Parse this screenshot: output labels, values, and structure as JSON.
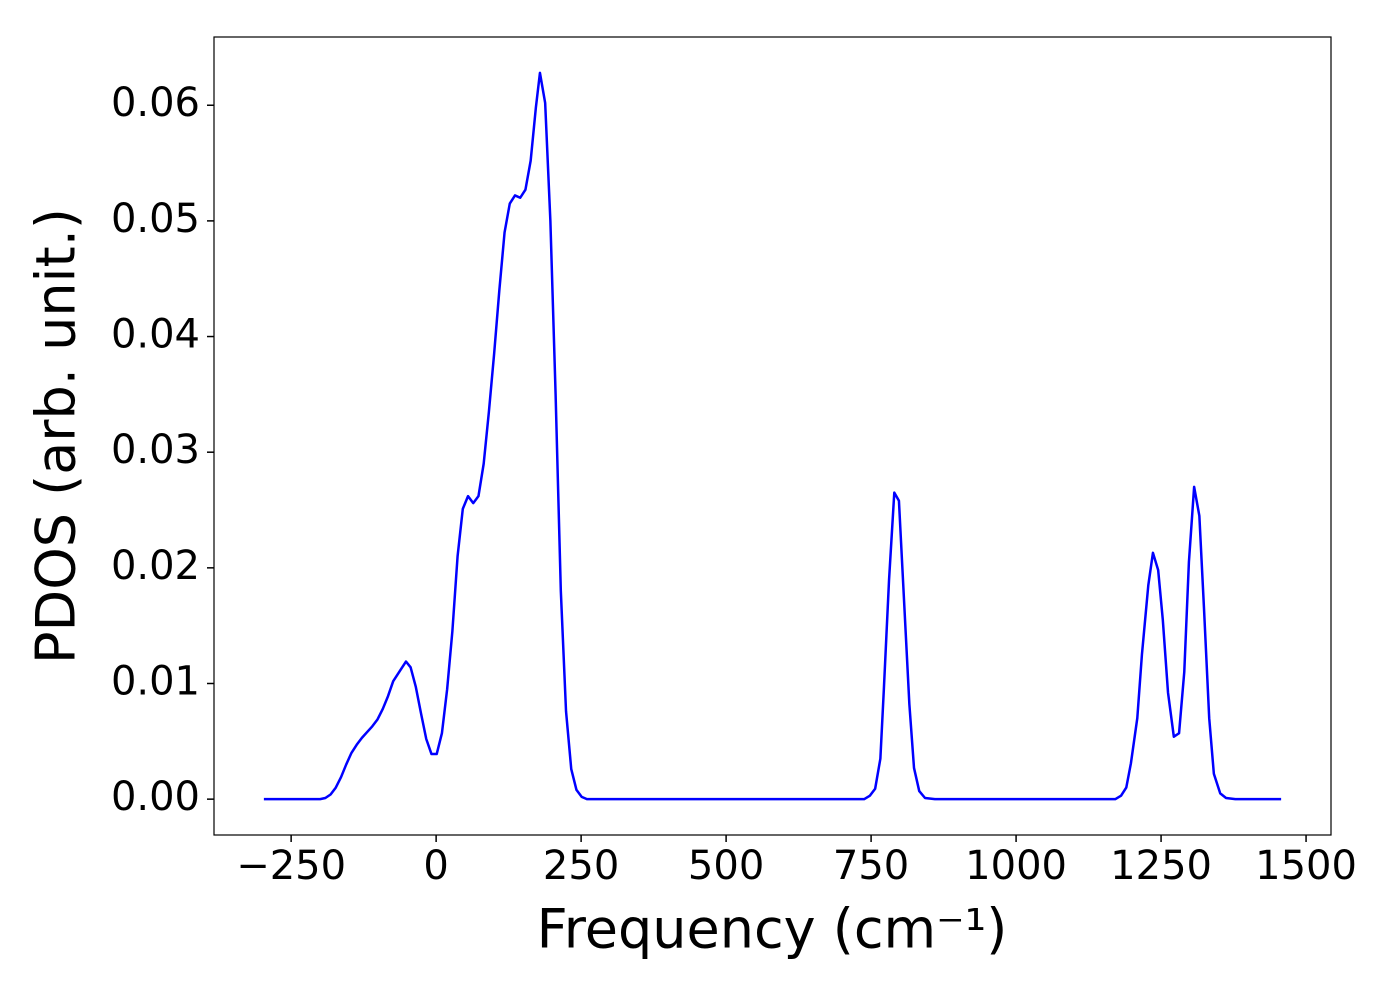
{
  "chart_data": {
    "type": "line",
    "xlabel": "Frequency (cm⁻¹)",
    "ylabel": "PDOS (arb. unit.)",
    "xlim": [
      -383,
      1543
    ],
    "ylim": [
      -0.0031,
      0.0659
    ],
    "xticks": [
      {
        "value": -250,
        "label": "−250"
      },
      0,
      250,
      500,
      750,
      1000,
      1250,
      1500
    ],
    "yticks": [
      {
        "value": 0,
        "label": "0.00"
      },
      0.01,
      0.02,
      0.03,
      0.04,
      0.05,
      0.06
    ],
    "grid": false,
    "series": [
      {
        "color": "#0000ff",
        "x": [
          -297,
          -200,
          -191,
          -182,
          -173,
          -164,
          -155,
          -146,
          -137,
          -128,
          -119,
          -110,
          -101,
          -92,
          -83,
          -74,
          -61,
          -52,
          -44,
          -35,
          -26,
          -17,
          -8,
          1,
          10,
          19,
          28,
          37,
          46,
          55,
          64,
          73,
          82,
          91,
          100,
          109,
          118,
          127,
          136,
          145,
          154,
          163,
          172,
          179,
          188,
          197,
          206,
          215,
          224,
          233,
          242,
          251,
          260,
          738,
          748,
          757,
          766,
          772,
          781,
          790,
          798,
          807,
          816,
          824,
          833,
          843,
          860,
          1171,
          1181,
          1190,
          1198,
          1209,
          1217,
          1228,
          1236,
          1245,
          1253,
          1262,
          1272,
          1281,
          1290,
          1298,
          1307,
          1316,
          1324,
          1333,
          1341,
          1352,
          1362,
          1378,
          1457
        ],
        "values": [
          0,
          0,
          0.0001,
          0.0004,
          0.001,
          0.0019,
          0.003,
          0.004,
          0.0047,
          0.0053,
          0.0058,
          0.0063,
          0.0069,
          0.0078,
          0.0089,
          0.0102,
          0.0112,
          0.0119,
          0.0114,
          0.0097,
          0.0074,
          0.0052,
          0.0039,
          0.0039,
          0.0057,
          0.0095,
          0.0145,
          0.021,
          0.0251,
          0.0262,
          0.0256,
          0.0262,
          0.029,
          0.0335,
          0.0385,
          0.044,
          0.049,
          0.0515,
          0.0522,
          0.052,
          0.0527,
          0.0552,
          0.0598,
          0.0628,
          0.0602,
          0.05,
          0.035,
          0.018,
          0.0076,
          0.0026,
          0.0008,
          0.0002,
          0,
          0,
          0.0003,
          0.0009,
          0.0035,
          0.0095,
          0.019,
          0.0265,
          0.0258,
          0.017,
          0.0082,
          0.0027,
          0.0007,
          0.0001,
          0,
          0,
          0.0003,
          0.001,
          0.0031,
          0.007,
          0.0125,
          0.0185,
          0.0213,
          0.0198,
          0.0155,
          0.0092,
          0.0054,
          0.0057,
          0.011,
          0.0205,
          0.027,
          0.0245,
          0.0165,
          0.007,
          0.0022,
          0.0005,
          0.0001,
          0,
          0
        ]
      }
    ]
  }
}
